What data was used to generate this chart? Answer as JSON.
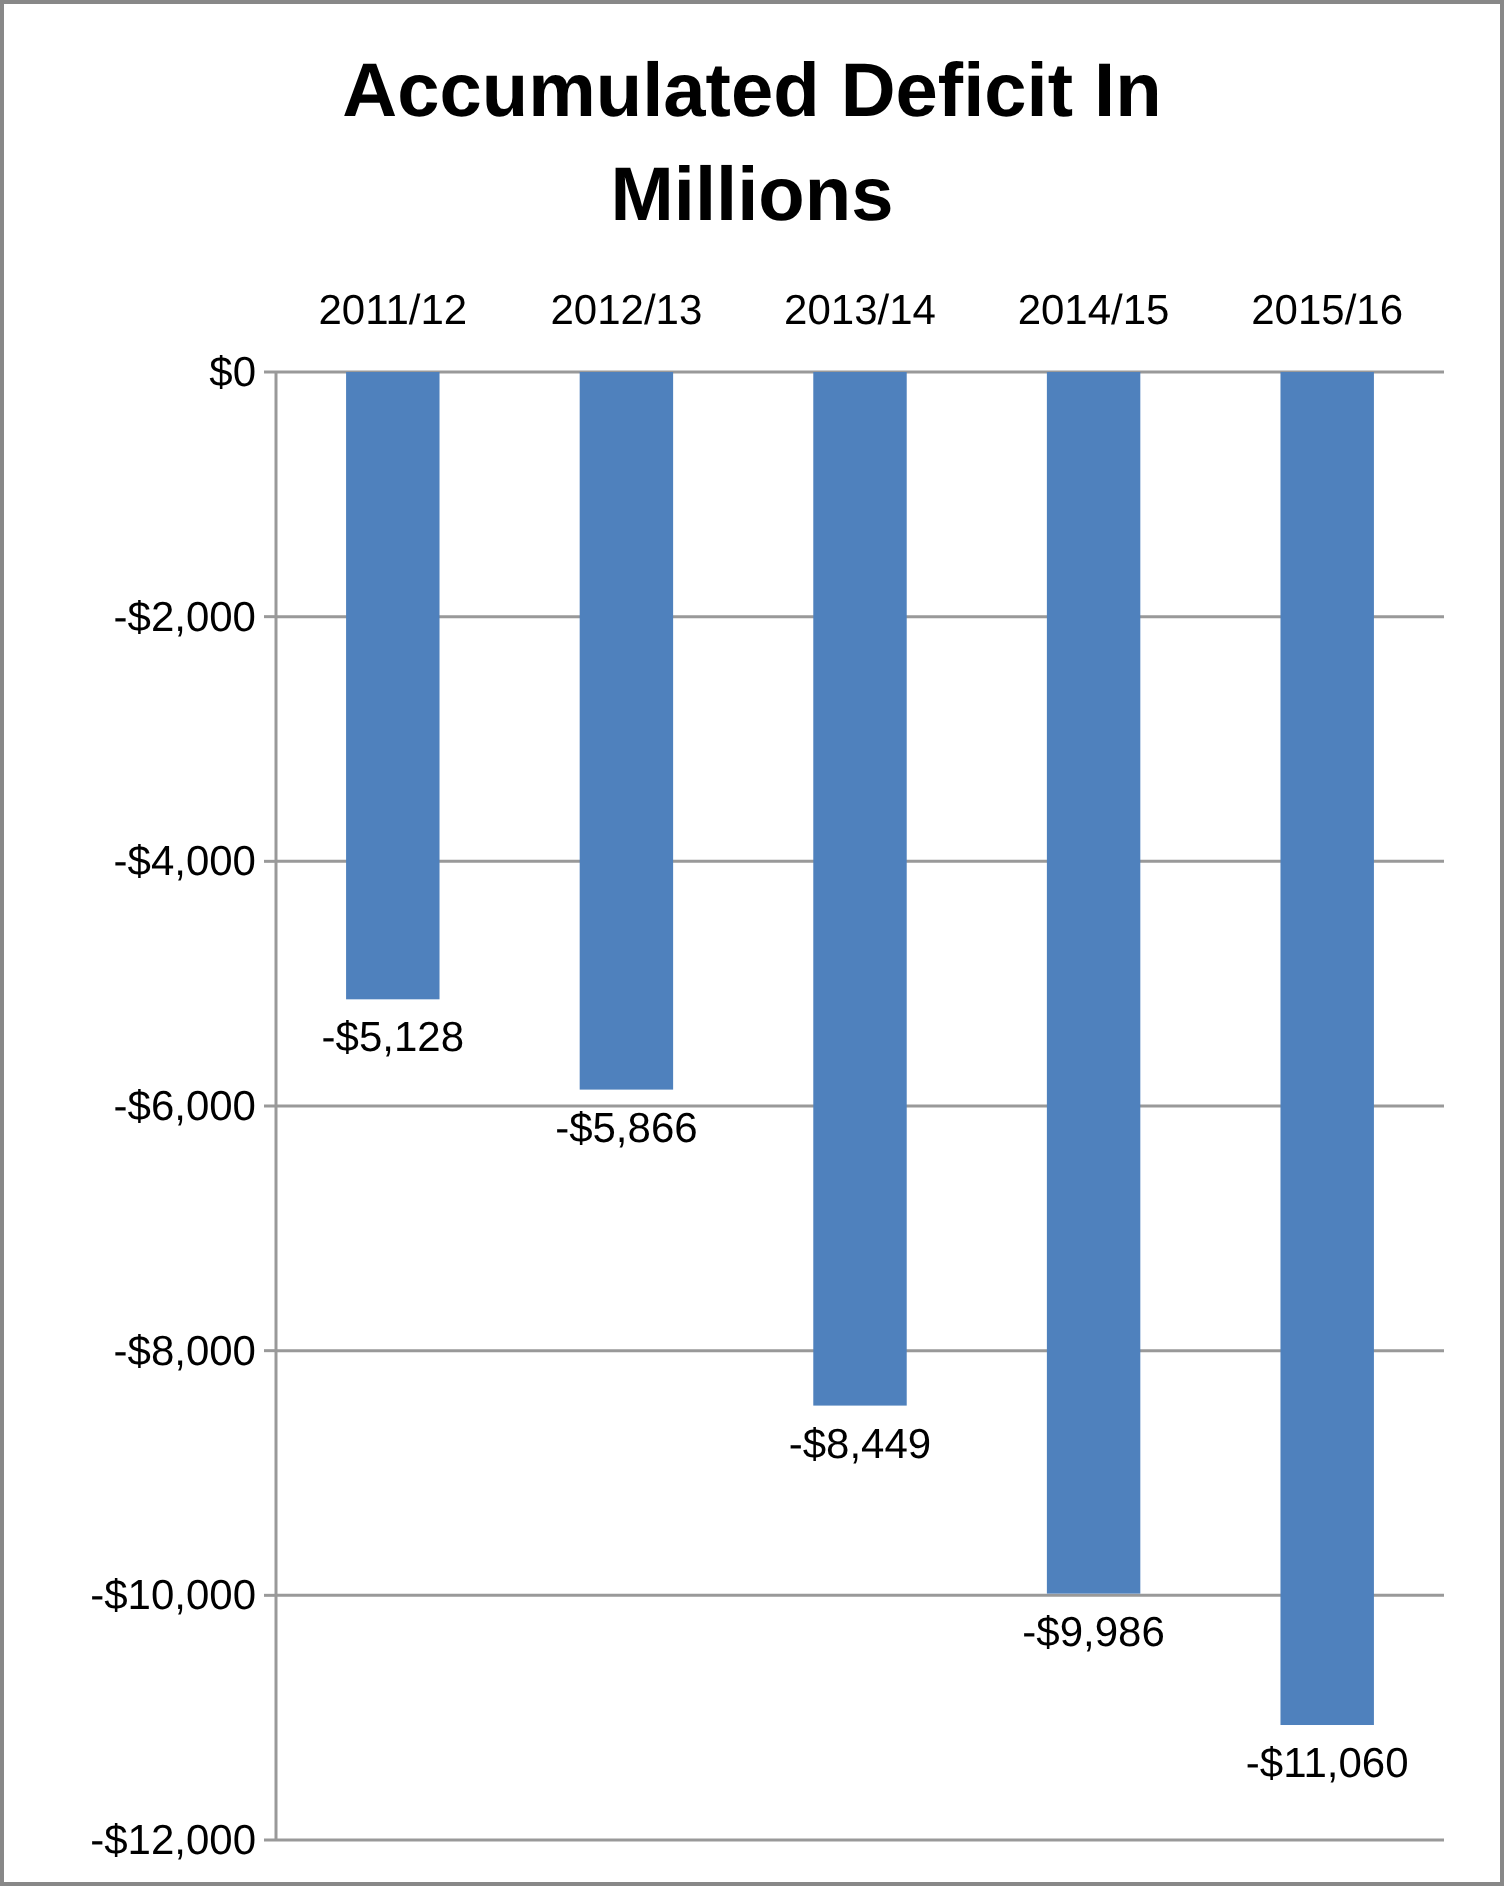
{
  "chart_data": {
    "type": "bar",
    "title": "Accumulated Deficit In Millions",
    "categories": [
      "2011/12",
      "2012/13",
      "2013/14",
      "2014/15",
      "2015/16"
    ],
    "values": [
      -5128,
      -5866,
      -8449,
      -9986,
      -11060
    ],
    "value_labels": [
      "-$5,128",
      "-$5,866",
      "-$8,449",
      "-$9,986",
      "-$11,060"
    ],
    "color": "#4f81bd",
    "ylim": [
      -12000,
      0
    ],
    "yticks": [
      {
        "value": 0,
        "label": "$0"
      },
      {
        "value": -2000,
        "label": "-$2,000"
      },
      {
        "value": -4000,
        "label": "-$4,000"
      },
      {
        "value": -6000,
        "label": "-$6,000"
      },
      {
        "value": -8000,
        "label": "-$8,000"
      },
      {
        "value": -10000,
        "label": "-$10,000"
      },
      {
        "value": -12000,
        "label": "-$12,000"
      }
    ],
    "grid": "y"
  }
}
